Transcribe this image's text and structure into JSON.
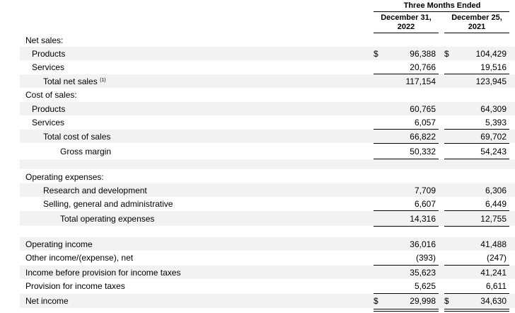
{
  "header": {
    "period_group": "Three Months Ended",
    "col1": [
      "December 31,",
      "2022"
    ],
    "col2": [
      "December 25,",
      "2021"
    ]
  },
  "currency_symbol": "$",
  "footnote_marker": "(1)",
  "rows": [
    {
      "label": "Net sales:"
    },
    {
      "label": "Products",
      "v1": "96,388",
      "v2": "104,429"
    },
    {
      "label": "Services",
      "v1": "20,766",
      "v2": "19,516"
    },
    {
      "label": "Total net sales",
      "v1": "117,154",
      "v2": "123,945"
    },
    {
      "label": "Cost of sales:"
    },
    {
      "label": "Products",
      "v1": "60,765",
      "v2": "64,309"
    },
    {
      "label": "Services",
      "v1": "6,057",
      "v2": "5,393"
    },
    {
      "label": "Total cost of sales",
      "v1": "66,822",
      "v2": "69,702"
    },
    {
      "label": "Gross margin",
      "v1": "50,332",
      "v2": "54,243"
    },
    {
      "label": "Operating expenses:"
    },
    {
      "label": "Research and development",
      "v1": "7,709",
      "v2": "6,306"
    },
    {
      "label": "Selling, general and administrative",
      "v1": "6,607",
      "v2": "6,449"
    },
    {
      "label": "Total operating expenses",
      "v1": "14,316",
      "v2": "12,755"
    },
    {
      "label": "Operating income",
      "v1": "36,016",
      "v2": "41,488"
    },
    {
      "label": "Other income/(expense), net",
      "v1": "(393)",
      "v2": "(247)"
    },
    {
      "label": "Income before provision for income taxes",
      "v1": "35,623",
      "v2": "41,241"
    },
    {
      "label": "Provision for income taxes",
      "v1": "5,625",
      "v2": "6,611"
    },
    {
      "label": "Net income",
      "v1": "29,998",
      "v2": "34,630"
    }
  ]
}
